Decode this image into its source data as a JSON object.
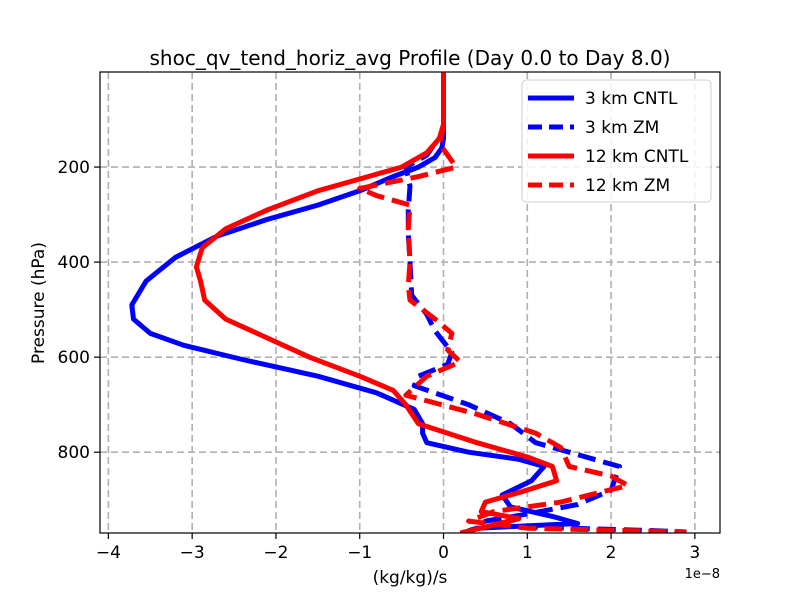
{
  "chart_data": {
    "type": "line",
    "title": "shoc_qv_tend_horiz_avg Profile (Day 0.0 to Day 8.0)",
    "xlabel": "(kg/kg)/s",
    "ylabel": "Pressure (hPa)",
    "x_scale_label": "1e−8",
    "xlim": [
      -4.1e-08,
      3.3e-08
    ],
    "ylim": [
      970,
      0
    ],
    "y_inverted": true,
    "grid": true,
    "legend_position": "top-right",
    "xticks": [
      -4e-08,
      -3e-08,
      -2e-08,
      -1e-08,
      0,
      1e-08,
      2e-08,
      3e-08
    ],
    "xtick_labels": [
      "−4",
      "−3",
      "−2",
      "−1",
      "0",
      "1",
      "2",
      "3"
    ],
    "yticks": [
      200,
      400,
      600,
      800
    ],
    "ytick_labels": [
      "200",
      "400",
      "600",
      "800"
    ],
    "series": [
      {
        "name": "3 km CNTL",
        "color": "#0000ff",
        "linestyle": "solid",
        "x": [
          0,
          0,
          -2e-10,
          -1e-09,
          -3e-09,
          -6e-09,
          -1e-08,
          -1.5e-08,
          -2.1e-08,
          -2.7e-08,
          -3.2e-08,
          -3.55e-08,
          -3.72e-08,
          -3.7e-08,
          -3.5e-08,
          -3.1e-08,
          -2.4e-08,
          -1.5e-08,
          -8e-09,
          -3.5e-09,
          -2.5e-09,
          -2.5e-09,
          -2e-09,
          3e-09,
          9e-09,
          1.2e-08,
          1.05e-08,
          7e-09,
          8e-09,
          1.3e-08,
          1.6e-08,
          4e-09,
          3e-09
        ],
        "y": [
          0,
          140,
          160,
          180,
          200,
          220,
          250,
          280,
          310,
          345,
          390,
          440,
          490,
          520,
          550,
          575,
          605,
          640,
          675,
          710,
          740,
          760,
          780,
          800,
          815,
          830,
          860,
          890,
          915,
          935,
          950,
          960,
          965
        ]
      },
      {
        "name": "3 km ZM",
        "color": "#0000ff",
        "linestyle": "dashed",
        "x": [
          0,
          0,
          -1e-09,
          -2e-09,
          -4.5e-09,
          -4e-09,
          -4.2e-09,
          -4.2e-09,
          -4e-09,
          -3.8e-09,
          -2e-09,
          -1e-09,
          1e-09,
          5e-10,
          -3e-09,
          -3.5e-09,
          3e-09,
          8e-09,
          1.1e-08,
          1.5e-08,
          2.1e-08,
          2e-08,
          1.6e-08,
          1e-08,
          5e-09,
          6e-09,
          2.5e-08,
          2.9e-08
        ],
        "y": [
          0,
          130,
          150,
          175,
          200,
          240,
          290,
          340,
          400,
          470,
          510,
          545,
          590,
          615,
          640,
          660,
          700,
          740,
          780,
          800,
          830,
          880,
          910,
          930,
          945,
          955,
          965,
          968
        ]
      },
      {
        "name": "12 km CNTL",
        "color": "#ff0000",
        "linestyle": "solid",
        "x": [
          0,
          0,
          -5e-10,
          -2e-09,
          -5e-09,
          -9e-09,
          -1.5e-08,
          -2.1e-08,
          -2.6e-08,
          -2.88e-08,
          -2.95e-08,
          -2.9e-08,
          -2.85e-08,
          -2.6e-08,
          -2.1e-08,
          -1.6e-08,
          -1e-08,
          -6e-09,
          -4.5e-09,
          -3e-09,
          4e-09,
          1e-08,
          1.3e-08,
          1.35e-08,
          9e-09,
          5e-09,
          4.5e-09,
          9e-09,
          5.5e-09,
          2e-09
        ],
        "y": [
          0,
          110,
          140,
          170,
          200,
          220,
          250,
          290,
          330,
          370,
          410,
          440,
          480,
          520,
          560,
          600,
          640,
          670,
          700,
          740,
          780,
          810,
          830,
          860,
          885,
          905,
          925,
          940,
          955,
          970
        ]
      },
      {
        "name": "12 km ZM",
        "color": "#ff0000",
        "linestyle": "dashed",
        "x": [
          0,
          0,
          -5e-10,
          1.5e-09,
          -3e-09,
          -1e-08,
          -8e-09,
          -4e-09,
          -4.2e-09,
          -4e-09,
          -4.2e-09,
          -4e-09,
          -1e-09,
          1e-09,
          5e-10,
          2e-09,
          -2e-09,
          -4.5e-09,
          4e-09,
          1.1e-08,
          1.4e-08,
          1.5e-08,
          2e-08,
          2.2e-08,
          1.4e-08,
          6e-09,
          3e-09,
          1e-08,
          2.9e-08
        ],
        "y": [
          0,
          120,
          150,
          200,
          220,
          245,
          260,
          280,
          330,
          400,
          450,
          480,
          520,
          550,
          585,
          610,
          640,
          680,
          720,
          760,
          790,
          830,
          850,
          870,
          905,
          925,
          945,
          960,
          968
        ]
      }
    ]
  }
}
